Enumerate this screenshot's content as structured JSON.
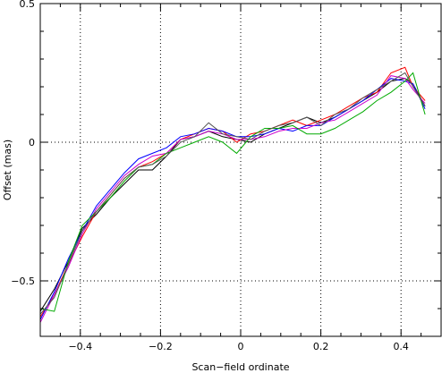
{
  "chart_data": {
    "type": "line",
    "xlabel": "Scan−field ordinate",
    "ylabel": "Offset (mas)",
    "xlim": [
      -0.5,
      0.5
    ],
    "ylim": [
      -0.7,
      0.5
    ],
    "xticks": [
      -0.4,
      -0.2,
      0,
      0.2,
      0.4
    ],
    "xtick_labels": [
      "−0.4",
      "−0.2",
      "0",
      "0.2",
      "0.4"
    ],
    "yticks": [
      -0.5,
      0,
      0.5
    ],
    "ytick_labels": [
      "−0.5",
      "0",
      "0.5"
    ],
    "grid": "dotted",
    "series": [
      {
        "color": "#000000",
        "x": [
          -0.5,
          -0.465,
          -0.43,
          -0.395,
          -0.36,
          -0.325,
          -0.29,
          -0.255,
          -0.22,
          -0.185,
          -0.15,
          -0.115,
          -0.08,
          -0.045,
          -0.01,
          0.025,
          0.06,
          0.095,
          0.13,
          0.165,
          0.2,
          0.235,
          0.27,
          0.305,
          0.34,
          0.375,
          0.41,
          0.43,
          0.46
        ],
        "y": [
          -0.61,
          -0.53,
          -0.43,
          -0.31,
          -0.26,
          -0.2,
          -0.15,
          -0.1,
          -0.1,
          -0.05,
          0.01,
          0.02,
          0.04,
          0.02,
          0.01,
          0.0,
          0.03,
          0.05,
          0.07,
          0.09,
          0.07,
          0.09,
          0.12,
          0.15,
          0.18,
          0.22,
          0.23,
          0.21,
          0.13
        ]
      },
      {
        "color": "#ff0000",
        "x": [
          -0.5,
          -0.465,
          -0.43,
          -0.395,
          -0.36,
          -0.325,
          -0.29,
          -0.255,
          -0.22,
          -0.185,
          -0.15,
          -0.115,
          -0.08,
          -0.045,
          -0.01,
          0.025,
          0.06,
          0.095,
          0.13,
          0.165,
          0.2,
          0.235,
          0.27,
          0.305,
          0.34,
          0.375,
          0.41,
          0.43,
          0.46
        ],
        "y": [
          -0.63,
          -0.55,
          -0.44,
          -0.34,
          -0.25,
          -0.19,
          -0.13,
          -0.09,
          -0.07,
          -0.04,
          0.01,
          0.03,
          0.05,
          0.04,
          0.0,
          0.03,
          0.04,
          0.06,
          0.08,
          0.06,
          0.08,
          0.1,
          0.13,
          0.16,
          0.18,
          0.25,
          0.27,
          0.2,
          0.15
        ]
      },
      {
        "color": "#0000ff",
        "x": [
          -0.5,
          -0.465,
          -0.43,
          -0.395,
          -0.36,
          -0.325,
          -0.29,
          -0.255,
          -0.22,
          -0.185,
          -0.15,
          -0.115,
          -0.08,
          -0.045,
          -0.01,
          0.025,
          0.06,
          0.095,
          0.13,
          0.165,
          0.2,
          0.235,
          0.27,
          0.305,
          0.34,
          0.375,
          0.41,
          0.43,
          0.46
        ],
        "y": [
          -0.64,
          -0.54,
          -0.42,
          -0.32,
          -0.23,
          -0.17,
          -0.11,
          -0.06,
          -0.04,
          -0.02,
          0.02,
          0.03,
          0.05,
          0.04,
          0.02,
          0.02,
          0.03,
          0.05,
          0.04,
          0.06,
          0.06,
          0.09,
          0.12,
          0.15,
          0.19,
          0.23,
          0.22,
          0.21,
          0.12
        ]
      },
      {
        "color": "#cc00cc",
        "x": [
          -0.5,
          -0.465,
          -0.43,
          -0.395,
          -0.36,
          -0.325,
          -0.29,
          -0.255,
          -0.22,
          -0.185,
          -0.15,
          -0.115,
          -0.08,
          -0.045,
          -0.01,
          0.025,
          0.06,
          0.095,
          0.13,
          0.165,
          0.2,
          0.235,
          0.27,
          0.305,
          0.34,
          0.375,
          0.41,
          0.43,
          0.46
        ],
        "y": [
          -0.65,
          -0.55,
          -0.45,
          -0.33,
          -0.24,
          -0.18,
          -0.12,
          -0.08,
          -0.05,
          -0.04,
          0.01,
          0.02,
          0.04,
          0.03,
          0.01,
          0.01,
          0.02,
          0.04,
          0.05,
          0.05,
          0.07,
          0.08,
          0.11,
          0.14,
          0.17,
          0.24,
          0.23,
          0.19,
          0.14
        ]
      },
      {
        "color": "#00aa00",
        "x": [
          -0.5,
          -0.465,
          -0.43,
          -0.395,
          -0.36,
          -0.325,
          -0.29,
          -0.255,
          -0.22,
          -0.185,
          -0.15,
          -0.115,
          -0.08,
          -0.045,
          -0.01,
          0.025,
          0.06,
          0.095,
          0.13,
          0.165,
          0.2,
          0.235,
          0.27,
          0.305,
          0.34,
          0.375,
          0.41,
          0.43,
          0.46
        ],
        "y": [
          -0.6,
          -0.61,
          -0.43,
          -0.3,
          -0.25,
          -0.2,
          -0.14,
          -0.09,
          -0.08,
          -0.04,
          -0.02,
          0.0,
          0.02,
          0.0,
          -0.04,
          0.02,
          0.05,
          0.05,
          0.06,
          0.03,
          0.03,
          0.05,
          0.08,
          0.11,
          0.15,
          0.18,
          0.22,
          0.25,
          0.1
        ]
      },
      {
        "color": "#555555",
        "x": [
          -0.5,
          -0.465,
          -0.43,
          -0.395,
          -0.36,
          -0.325,
          -0.29,
          -0.255,
          -0.22,
          -0.185,
          -0.15,
          -0.115,
          -0.08,
          -0.045,
          -0.01,
          0.025,
          0.06,
          0.095,
          0.13,
          0.165,
          0.2,
          0.235,
          0.27,
          0.305,
          0.34,
          0.375,
          0.41,
          0.43,
          0.46
        ],
        "y": [
          -0.62,
          -0.56,
          -0.44,
          -0.32,
          -0.25,
          -0.19,
          -0.13,
          -0.09,
          -0.08,
          -0.05,
          0.0,
          0.02,
          0.07,
          0.03,
          0.02,
          0.01,
          0.04,
          0.06,
          0.07,
          0.09,
          0.06,
          0.1,
          0.12,
          0.16,
          0.19,
          0.22,
          0.25,
          0.2,
          0.13
        ]
      }
    ]
  }
}
